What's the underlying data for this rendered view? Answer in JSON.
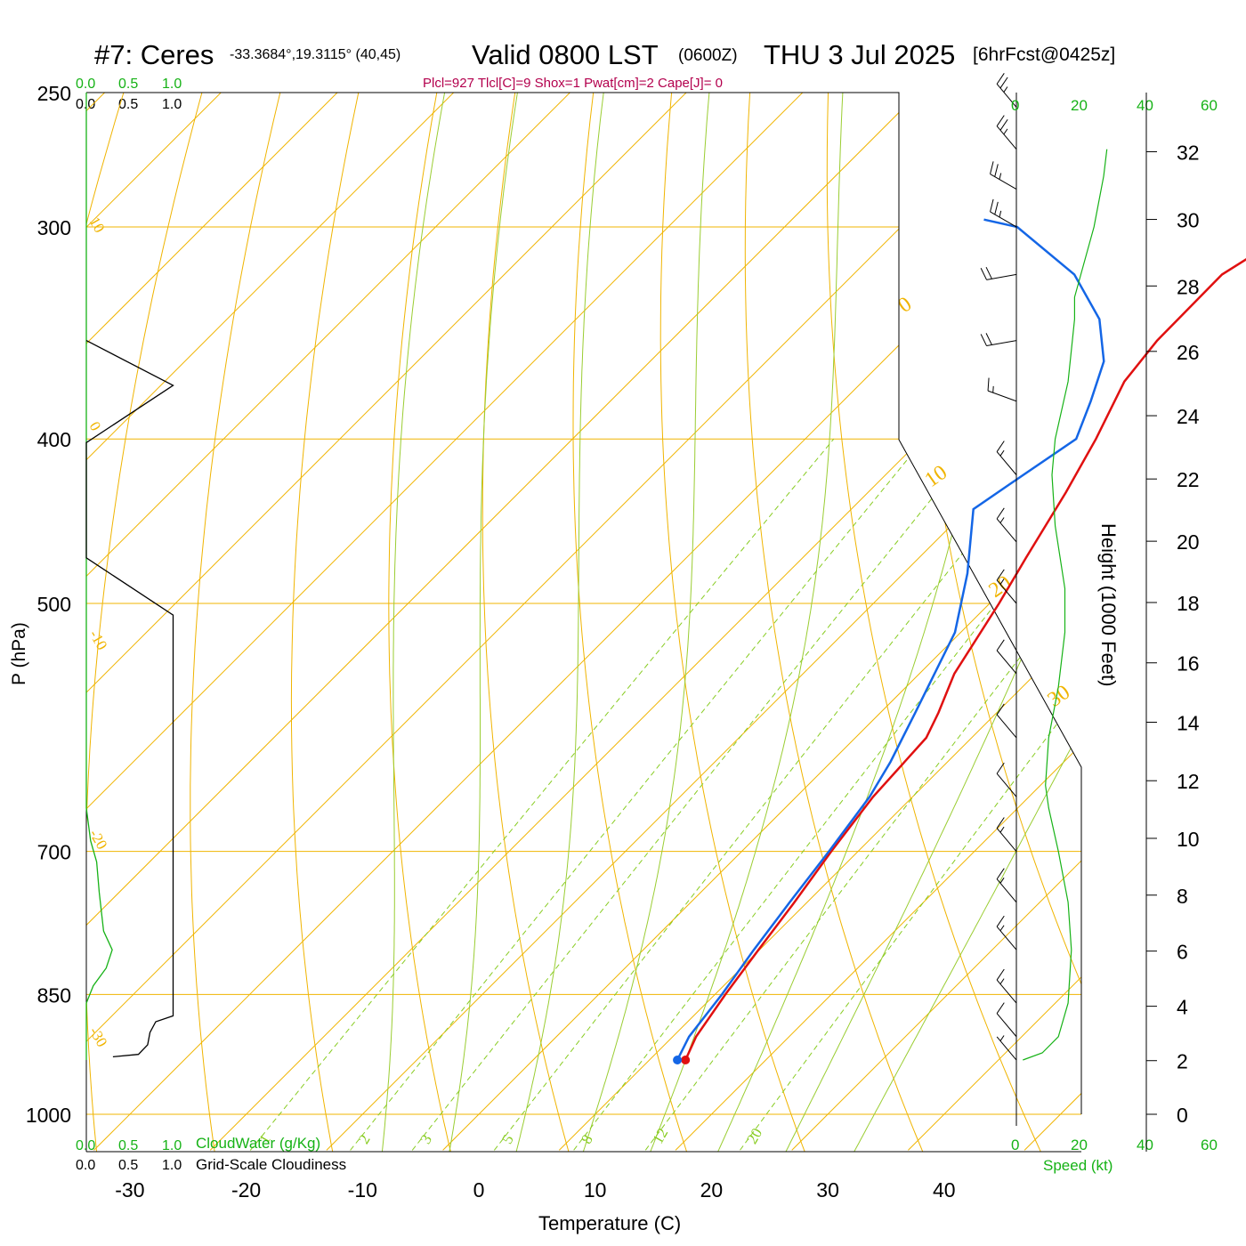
{
  "header": {
    "station": "#7: Ceres",
    "coords": "-33.3684°,19.3115° (40,45)",
    "valid": "Valid 0800 LST",
    "zulu": "(0600Z)",
    "date": "THU 3 Jul 2025",
    "forecast": "[6hrFcst@0425z]"
  },
  "params_line": "Plcl=927 Tlcl[C]=9 Shox=1 Pwat[cm]=2 Cape[J]= 0",
  "colors": {
    "temperature": "#e01010",
    "dewpoint": "#1466e6",
    "isotherm": "#f0b400",
    "dry_adiabat": "#f0b400",
    "moist_adiabat": "#9acd32",
    "mixing_ratio": "#88cc22",
    "cloud_water": "#16b216",
    "cloudiness": "#000000",
    "wind_speed": "#16b216",
    "params": "#b3004d"
  },
  "chart_data": {
    "type": "line",
    "title": "#7: Ceres -33.3684°,19.3115° (40,45) Valid 0800 LST (0600Z) THU 3 Jul 2025 [6hrFcst@0425z]",
    "xlabel": "Temperature (C)",
    "ylabel": "P (hPa)",
    "ylabel_right": "Height (1000 Feet)",
    "x_ticks": [
      "-30",
      "-20",
      "-10",
      "0",
      "10",
      "20",
      "30",
      "40"
    ],
    "p_ticks": [
      "250",
      "300",
      "400",
      "500",
      "700",
      "850",
      "1000"
    ],
    "height_ticks": [
      "0",
      "2",
      "4",
      "6",
      "8",
      "10",
      "12",
      "14",
      "16",
      "18",
      "20",
      "22",
      "24",
      "26",
      "28",
      "30",
      "32"
    ],
    "top_axis_green": [
      "0.0",
      "0.5",
      "1.0"
    ],
    "top_axis_black": [
      "0.0",
      "0.5",
      "1.0"
    ],
    "bottom_axis_green": [
      "0.0",
      "0.5",
      "1.0"
    ],
    "bottom_axis_black": [
      "0.0",
      "0.5",
      "1.0"
    ],
    "cloud_water_label": "CloudWater (g/Kg)",
    "cloudiness_label": "Grid-Scale Cloudiness",
    "speed_label": "Speed (kt)",
    "speed_ticks_top": [
      "0",
      "20",
      "40",
      "60"
    ],
    "speed_ticks_bottom": [
      "0",
      "20",
      "40",
      "60"
    ],
    "isotherm_labels": [
      "-30",
      "-20",
      "-10",
      "0",
      "10",
      "20",
      "30",
      "40"
    ],
    "dry_adiabat_labels": [
      "10",
      "0",
      "-10",
      "-20",
      "-30",
      "0",
      "10",
      "20",
      "30"
    ],
    "mixing_ratio_labels": [
      "1",
      "2",
      "3",
      "5",
      "8",
      "12",
      "20"
    ],
    "series": [
      {
        "name": "Temperature",
        "points": [
          [
            13.1,
            929
          ],
          [
            12.0,
            900
          ],
          [
            10.9,
            850
          ],
          [
            9.9,
            800
          ],
          [
            8.9,
            750
          ],
          [
            7.7,
            700
          ],
          [
            6.6,
            650
          ],
          [
            6.1,
            600
          ],
          [
            5.0,
            580
          ],
          [
            3.0,
            550
          ],
          [
            0.8,
            500
          ],
          [
            -0.8,
            470
          ],
          [
            -3.0,
            430
          ],
          [
            -5.0,
            400
          ],
          [
            -7.5,
            370
          ],
          [
            -8.2,
            350
          ],
          [
            -8.3,
            320
          ],
          [
            -6.5,
            305
          ],
          [
            -3.2,
            290
          ],
          [
            -0.5,
            275
          ]
        ]
      },
      {
        "name": "Dewpoint",
        "points": [
          [
            12.4,
            929
          ],
          [
            11.4,
            900
          ],
          [
            10.6,
            850
          ],
          [
            9.5,
            800
          ],
          [
            8.5,
            750
          ],
          [
            7.5,
            700
          ],
          [
            6.3,
            650
          ],
          [
            5.1,
            620
          ],
          [
            3.0,
            580
          ],
          [
            -0.5,
            520
          ],
          [
            -4.5,
            480
          ],
          [
            -9.5,
            440
          ],
          [
            -8.5,
            425
          ],
          [
            -6.7,
            400
          ],
          [
            -8.7,
            380
          ],
          [
            -11.0,
            360
          ],
          [
            -15.0,
            340
          ],
          [
            -21.0,
            320
          ],
          [
            -30.0,
            300
          ],
          [
            -33.5,
            297
          ]
        ]
      }
    ],
    "cloud_water_points": [
      [
        0.0,
        250
      ],
      [
        0.0,
        660
      ],
      [
        0.05,
        690
      ],
      [
        0.12,
        710
      ],
      [
        0.15,
        740
      ],
      [
        0.2,
        780
      ],
      [
        0.3,
        800
      ],
      [
        0.23,
        820
      ],
      [
        0.08,
        840
      ],
      [
        0.0,
        860
      ],
      [
        0.0,
        929
      ]
    ],
    "cloudiness_points": [
      [
        0.0,
        350
      ],
      [
        0.75,
        372
      ],
      [
        0.0,
        402
      ],
      [
        0.0,
        470
      ],
      [
        0.75,
        508
      ],
      [
        0.75,
        875
      ],
      [
        0.6,
        882
      ],
      [
        0.55,
        895
      ],
      [
        0.53,
        910
      ],
      [
        0.45,
        922
      ],
      [
        0.23,
        925
      ]
    ],
    "wind_speed_profile": [
      [
        2,
        929
      ],
      [
        8,
        920
      ],
      [
        13,
        900
      ],
      [
        16,
        860
      ],
      [
        17,
        800
      ],
      [
        16,
        750
      ],
      [
        13,
        700
      ],
      [
        10,
        660
      ],
      [
        9,
        640
      ],
      [
        10,
        600
      ],
      [
        13,
        560
      ],
      [
        15,
        520
      ],
      [
        15,
        490
      ],
      [
        12,
        450
      ],
      [
        11,
        420
      ],
      [
        12,
        400
      ],
      [
        16,
        370
      ],
      [
        18,
        340
      ],
      [
        18,
        330
      ],
      [
        24,
        300
      ],
      [
        27,
        280
      ],
      [
        28,
        270
      ]
    ],
    "wind_barbs": [
      {
        "p": 929,
        "dir": 320,
        "kt": 5
      },
      {
        "p": 900,
        "dir": 320,
        "kt": 10
      },
      {
        "p": 860,
        "dir": 320,
        "kt": 15
      },
      {
        "p": 800,
        "dir": 320,
        "kt": 15
      },
      {
        "p": 750,
        "dir": 320,
        "kt": 15
      },
      {
        "p": 700,
        "dir": 320,
        "kt": 15
      },
      {
        "p": 650,
        "dir": 320,
        "kt": 10
      },
      {
        "p": 600,
        "dir": 320,
        "kt": 10
      },
      {
        "p": 550,
        "dir": 320,
        "kt": 10
      },
      {
        "p": 500,
        "dir": 320,
        "kt": 15
      },
      {
        "p": 460,
        "dir": 320,
        "kt": 15
      },
      {
        "p": 420,
        "dir": 320,
        "kt": 15
      },
      {
        "p": 380,
        "dir": 290,
        "kt": 15
      },
      {
        "p": 350,
        "dir": 260,
        "kt": 20
      },
      {
        "p": 320,
        "dir": 260,
        "kt": 20
      },
      {
        "p": 300,
        "dir": 300,
        "kt": 25
      },
      {
        "p": 285,
        "dir": 300,
        "kt": 25
      },
      {
        "p": 270,
        "dir": 320,
        "kt": 25
      },
      {
        "p": 255,
        "dir": 320,
        "kt": 25
      }
    ],
    "ylim": [
      250,
      1000
    ],
    "xlim": [
      -34,
      36
    ]
  }
}
